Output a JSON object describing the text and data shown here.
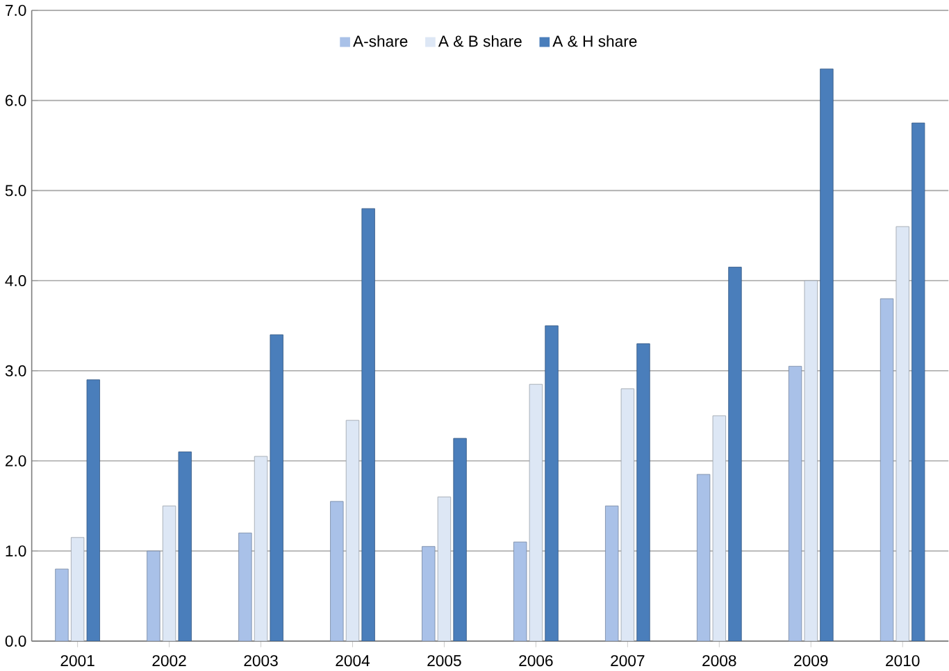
{
  "chart_data": {
    "type": "bar",
    "categories": [
      "2001",
      "2002",
      "2003",
      "2004",
      "2005",
      "2006",
      "2007",
      "2008",
      "2009",
      "2010"
    ],
    "series": [
      {
        "name": "A-share",
        "color": "#a9c1e8",
        "values": [
          0.8,
          1.0,
          1.2,
          1.55,
          1.05,
          1.1,
          1.5,
          1.85,
          3.05,
          3.8
        ]
      },
      {
        "name": "A & B share",
        "color": "#dde7f5",
        "values": [
          1.15,
          1.5,
          2.05,
          2.45,
          1.6,
          2.85,
          2.8,
          2.5,
          4.0,
          4.6
        ]
      },
      {
        "name": "A & H share",
        "color": "#4a7ebb",
        "values": [
          2.9,
          2.1,
          3.4,
          4.8,
          2.25,
          3.5,
          3.3,
          4.15,
          6.35,
          5.75
        ]
      }
    ],
    "ylim": [
      0,
      7
    ],
    "yticks": [
      {
        "value": 0,
        "label": "0.0"
      },
      {
        "value": 1,
        "label": "1.0"
      },
      {
        "value": 2,
        "label": "2.0"
      },
      {
        "value": 3,
        "label": "3.0"
      },
      {
        "value": 4,
        "label": "4.0"
      },
      {
        "value": 5,
        "label": "5.0"
      },
      {
        "value": 6,
        "label": "6.0"
      },
      {
        "value": 7,
        "label": "7.0"
      }
    ],
    "grid": "y",
    "legend": "top"
  }
}
